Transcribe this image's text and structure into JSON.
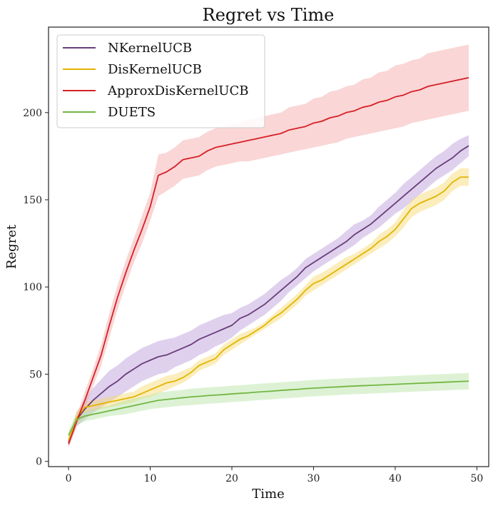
{
  "chart_data": {
    "type": "line",
    "title": "Regret vs Time",
    "xlabel": "Time",
    "ylabel": "Regret",
    "xlim": [
      -2.45,
      51.45
    ],
    "ylim": [
      -3,
      249
    ],
    "xticks": [
      0,
      10,
      20,
      30,
      40,
      50
    ],
    "yticks": [
      0,
      50,
      100,
      150,
      200
    ],
    "grid": false,
    "legend_position": "top-left",
    "x": [
      0,
      1,
      2,
      3,
      4,
      5,
      6,
      7,
      8,
      9,
      10,
      11,
      12,
      13,
      14,
      15,
      16,
      17,
      18,
      19,
      20,
      21,
      22,
      23,
      24,
      25,
      26,
      27,
      28,
      29,
      30,
      31,
      32,
      33,
      34,
      35,
      36,
      37,
      38,
      39,
      40,
      41,
      42,
      43,
      44,
      45,
      46,
      47,
      48,
      49
    ],
    "series": [
      {
        "name": "NKernelUCB",
        "color": "#6a3d7a",
        "band_color": "#b79ad6",
        "values": [
          11,
          24,
          30,
          35,
          39,
          43,
          46,
          50,
          53,
          56,
          58,
          60,
          61,
          63,
          65,
          67,
          70,
          72,
          74,
          76,
          78,
          82,
          84,
          87,
          90,
          94,
          98,
          102,
          106,
          111,
          114,
          117,
          120,
          123,
          126,
          130,
          133,
          136,
          140,
          144,
          148,
          152,
          156,
          160,
          164,
          168,
          171,
          174,
          178,
          181
        ],
        "lower": [
          8,
          20,
          24,
          28,
          31,
          34,
          37,
          40,
          43,
          46,
          48,
          50,
          51,
          54,
          56,
          58,
          61,
          63,
          66,
          68,
          71,
          75,
          78,
          81,
          84,
          88,
          92,
          97,
          101,
          105,
          109,
          112,
          115,
          118,
          121,
          124,
          128,
          131,
          134,
          138,
          142,
          145,
          149,
          153,
          157,
          161,
          164,
          167,
          171,
          175
        ],
        "upper": [
          14,
          28,
          36,
          42,
          47,
          52,
          55,
          59,
          62,
          65,
          67,
          69,
          70,
          71,
          73,
          75,
          78,
          80,
          82,
          84,
          85,
          88,
          90,
          93,
          96,
          100,
          104,
          107,
          111,
          116,
          119,
          122,
          125,
          128,
          132,
          136,
          138,
          141,
          146,
          150,
          154,
          159,
          163,
          167,
          171,
          175,
          178,
          182,
          185,
          187
        ]
      },
      {
        "name": "DisKernelUCB",
        "color": "#e3b400",
        "band_color": "#f6d76a",
        "values": [
          12,
          25,
          31,
          32,
          33,
          34,
          35,
          36,
          37,
          39,
          41,
          43,
          45,
          46,
          48,
          51,
          55,
          57,
          59,
          64,
          67,
          70,
          72,
          75,
          78,
          82,
          85,
          89,
          93,
          98,
          102,
          104,
          107,
          110,
          113,
          116,
          119,
          122,
          126,
          129,
          133,
          139,
          145,
          148,
          150,
          152,
          155,
          160,
          163,
          163
        ],
        "lower": [
          9,
          21,
          28,
          29,
          30,
          31,
          32,
          33,
          34,
          36,
          37,
          39,
          41,
          43,
          45,
          48,
          52,
          54,
          56,
          61,
          64,
          67,
          70,
          73,
          76,
          79,
          82,
          86,
          90,
          95,
          98,
          101,
          104,
          107,
          110,
          113,
          116,
          119,
          122,
          125,
          129,
          134,
          140,
          143,
          145,
          147,
          150,
          155,
          158,
          158
        ],
        "upper": [
          15,
          29,
          34,
          35,
          36,
          37,
          38,
          39,
          40,
          43,
          45,
          47,
          49,
          50,
          52,
          54,
          58,
          60,
          62,
          67,
          70,
          73,
          75,
          77,
          80,
          84,
          88,
          92,
          96,
          101,
          106,
          108,
          111,
          114,
          117,
          119,
          122,
          125,
          130,
          133,
          137,
          144,
          150,
          153,
          155,
          157,
          160,
          165,
          168,
          168
        ]
      },
      {
        "name": "ApproxDisKernelUCB",
        "color": "#d61f26",
        "band_color": "#f4a3a3",
        "values": [
          10,
          23,
          35,
          48,
          61,
          78,
          94,
          108,
          121,
          133,
          146,
          164,
          166,
          169,
          173,
          174,
          175,
          178,
          180,
          181,
          182,
          183,
          184,
          185,
          186,
          187,
          188,
          190,
          191,
          192,
          194,
          195,
          197,
          198,
          200,
          201,
          203,
          204,
          206,
          207,
          209,
          210,
          212,
          213,
          215,
          216,
          217,
          218,
          219,
          220
        ],
        "lower": [
          8,
          20,
          30,
          43,
          55,
          71,
          87,
          101,
          114,
          125,
          138,
          152,
          155,
          158,
          162,
          163,
          164,
          167,
          169,
          170,
          171,
          172,
          172,
          173,
          174,
          175,
          176,
          177,
          178,
          179,
          180,
          181,
          182,
          183,
          185,
          186,
          187,
          188,
          189,
          190,
          191,
          192,
          194,
          195,
          196,
          197,
          198,
          199,
          200,
          201
        ],
        "upper": [
          12,
          26,
          40,
          53,
          67,
          85,
          101,
          115,
          128,
          141,
          154,
          176,
          177,
          180,
          184,
          185,
          186,
          189,
          191,
          192,
          193,
          194,
          196,
          197,
          198,
          199,
          200,
          203,
          204,
          205,
          208,
          209,
          212,
          213,
          215,
          216,
          219,
          220,
          223,
          224,
          227,
          228,
          230,
          231,
          234,
          235,
          236,
          237,
          238,
          239
        ]
      },
      {
        "name": "DUETS",
        "color": "#72b643",
        "band_color": "#b3e3a0",
        "values": [
          15,
          24,
          26,
          27,
          28,
          29,
          30,
          31,
          32,
          33,
          34,
          35,
          35.5,
          36,
          36.5,
          37,
          37.3,
          37.7,
          38,
          38.3,
          38.7,
          39,
          39.3,
          39.7,
          40,
          40.3,
          40.7,
          41,
          41.3,
          41.7,
          42,
          42.2,
          42.5,
          42.7,
          43,
          43.2,
          43.4,
          43.6,
          43.8,
          44,
          44.2,
          44.4,
          44.6,
          44.8,
          45,
          45.2,
          45.4,
          45.6,
          45.8,
          46
        ],
        "lower": [
          12,
          21,
          23,
          24,
          25,
          26,
          26.5,
          27,
          28,
          29,
          30,
          30.5,
          31,
          31.5,
          32,
          32.3,
          32.6,
          33,
          33.3,
          33.6,
          34,
          34.3,
          34.6,
          35,
          35.3,
          35.6,
          36,
          36.3,
          36.6,
          37,
          37.3,
          37.5,
          37.8,
          38,
          38.3,
          38.5,
          38.7,
          38.9,
          39.1,
          39.3,
          39.5,
          39.7,
          39.9,
          40.1,
          40.3,
          40.5,
          40.7,
          40.9,
          41.1,
          41.3
        ],
        "upper": [
          18,
          27,
          29,
          30,
          31,
          32,
          33.5,
          35,
          36,
          37,
          38,
          39.5,
          40,
          40.5,
          41,
          41.7,
          42,
          42.4,
          42.7,
          43,
          43.4,
          43.7,
          44,
          44.4,
          44.7,
          45,
          45.4,
          45.7,
          46,
          46.4,
          46.7,
          46.9,
          47.2,
          47.4,
          47.7,
          47.9,
          48.1,
          48.3,
          48.5,
          48.7,
          48.9,
          49.1,
          49.3,
          49.5,
          49.7,
          49.9,
          50.1,
          50.3,
          50.5,
          50.7
        ]
      }
    ]
  }
}
